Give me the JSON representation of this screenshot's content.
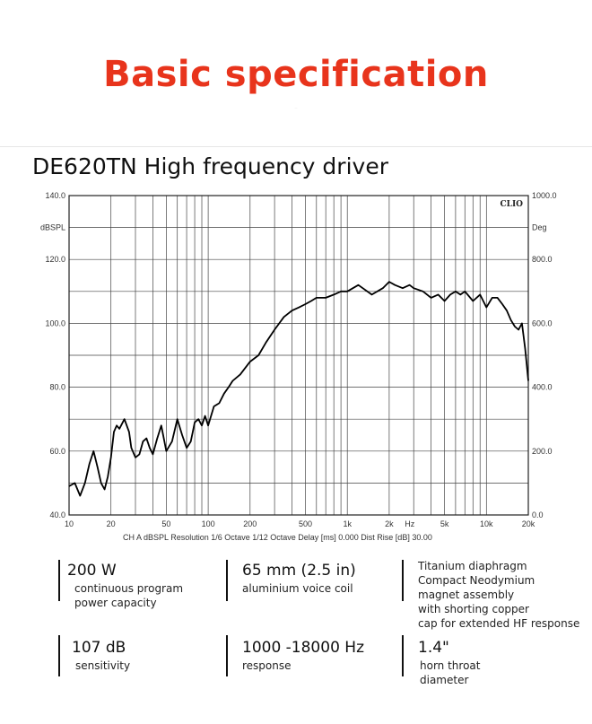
{
  "header": {
    "title": "Basic specification",
    "fineprint": "…"
  },
  "subtitle": "DE620TN High frequency driver",
  "chart_data": {
    "type": "line",
    "title": "",
    "xlabel": "Hz",
    "x_scale": "log",
    "xlim": [
      10,
      20000
    ],
    "x_ticks": [
      "10",
      "20",
      "50",
      "100",
      "200",
      "500",
      "1k",
      "2k",
      "5k",
      "10k",
      "20k"
    ],
    "left_axis": {
      "label": "dBSPL",
      "ylim": [
        40,
        140
      ],
      "ticks": [
        "40.0",
        "60.0",
        "80.0",
        "100.0",
        "120.0",
        "140.0"
      ]
    },
    "right_axis": {
      "label": "Deg",
      "ylim": [
        0,
        1000
      ],
      "ticks": [
        "0.0",
        "200.0",
        "400.0",
        "600.0",
        "800.0",
        "1000.0"
      ]
    },
    "brand": "CLIO",
    "footer": "CH A   dBSPL   Resolution 1/6 Octave   1/12 Octave  Delay [ms] 0.000   Dist Rise [dB] 30.00",
    "grid": true,
    "series": [
      {
        "x": [
          10,
          11,
          12,
          13,
          14,
          15,
          16,
          17,
          18,
          19,
          20,
          21,
          22,
          23,
          25,
          27,
          28,
          30,
          32,
          34,
          36,
          38,
          40,
          43,
          46,
          50,
          55,
          60,
          65,
          70,
          75,
          80,
          85,
          90,
          95,
          100,
          110,
          120,
          130,
          140,
          150,
          170,
          200,
          230,
          260,
          300,
          350,
          400,
          450,
          500,
          550,
          600,
          700,
          800,
          900,
          1000,
          1200,
          1500,
          1800,
          2000,
          2200,
          2500,
          2800,
          3000,
          3500,
          4000,
          4500,
          5000,
          5500,
          6000,
          6500,
          7000,
          8000,
          9000,
          10000,
          11000,
          12000,
          13000,
          14000,
          15000,
          16000,
          17000,
          18000,
          19000,
          20000
        ],
        "y": [
          49,
          50,
          46,
          50,
          56,
          60,
          55,
          50,
          48,
          52,
          58,
          66,
          68,
          67,
          70,
          66,
          61,
          58,
          59,
          63,
          64,
          61,
          59,
          64,
          68,
          60,
          63,
          70,
          65,
          61,
          63,
          69,
          70,
          68,
          71,
          68,
          74,
          75,
          78,
          80,
          82,
          84,
          88,
          90,
          94,
          98,
          102,
          104,
          105,
          106,
          107,
          108,
          108,
          109,
          110,
          110,
          112,
          109,
          111,
          113,
          112,
          111,
          112,
          111,
          110,
          108,
          109,
          107,
          109,
          110,
          109,
          110,
          107,
          109,
          105,
          108,
          108,
          106,
          104,
          101,
          99,
          98,
          100,
          92,
          82
        ]
      }
    ]
  },
  "specs": [
    {
      "value": "200 W",
      "desc": "continuous program\npower capacity"
    },
    {
      "value": "65 mm (2.5 in)",
      "desc": "aluminium voice coil"
    },
    {
      "value": "",
      "desc": "Titanium diaphragm\nCompact Neodymium\nmagnet assembly\nwith shorting copper\ncap for extended HF response"
    },
    {
      "value": "107 dB",
      "desc": "sensitivity"
    },
    {
      "value": "1000 -18000 Hz",
      "desc": "response"
    },
    {
      "value": "1.4\"",
      "desc": "horn throat\ndiameter"
    }
  ]
}
